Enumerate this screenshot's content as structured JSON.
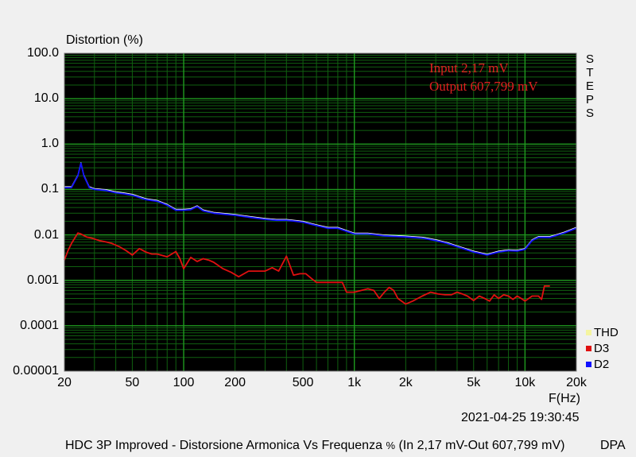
{
  "chart_data": {
    "type": "line",
    "title": "Distortion (%)",
    "xlabel": "F(Hz)",
    "xscale": "log",
    "yscale": "log",
    "xlim": [
      20,
      20000
    ],
    "ylim": [
      1e-05,
      100
    ],
    "grid": true,
    "x_ticks": [
      20,
      50,
      100,
      200,
      500,
      1000,
      2000,
      5000,
      10000,
      20000
    ],
    "x_tick_labels": [
      "20",
      "50",
      "100",
      "200",
      "500",
      "1k",
      "2k",
      "5k",
      "10k",
      "20k"
    ],
    "y_ticks": [
      100,
      10,
      1,
      0.1,
      0.01,
      0.001,
      0.0001,
      1e-05
    ],
    "y_tick_labels": [
      "100.0",
      "10.0",
      "1.0",
      "0.1",
      "0.01",
      "0.001",
      "0.0001",
      "0.00001"
    ],
    "legend": [
      "THD",
      "D3",
      "D2"
    ],
    "legend_placement": "bottom-right",
    "side_label": "STEPS",
    "annotations": [
      "Input 2,17 mV",
      "Output 607,799 mV"
    ],
    "series": [
      {
        "name": "D2",
        "color": "#1010ff",
        "x": [
          20,
          22,
          24,
          25,
          26,
          28,
          30,
          35,
          40,
          45,
          50,
          60,
          70,
          80,
          90,
          100,
          110,
          120,
          130,
          150,
          200,
          250,
          300,
          350,
          400,
          450,
          500,
          600,
          700,
          800,
          900,
          1000,
          1200,
          1500,
          2000,
          2500,
          3000,
          3500,
          4000,
          5000,
          6000,
          7000,
          8000,
          9000,
          10000,
          11000,
          12000,
          13000,
          14000,
          15000,
          17000,
          20000
        ],
        "y": [
          0.11,
          0.11,
          0.2,
          0.38,
          0.2,
          0.11,
          0.1,
          0.095,
          0.085,
          0.08,
          0.075,
          0.06,
          0.055,
          0.045,
          0.035,
          0.035,
          0.036,
          0.042,
          0.034,
          0.03,
          0.027,
          0.024,
          0.022,
          0.021,
          0.021,
          0.02,
          0.019,
          0.016,
          0.014,
          0.014,
          0.012,
          0.0105,
          0.0105,
          0.0095,
          0.009,
          0.0085,
          0.0075,
          0.0065,
          0.0055,
          0.0042,
          0.0036,
          0.0042,
          0.0045,
          0.0044,
          0.0048,
          0.0075,
          0.0088,
          0.0088,
          0.0088,
          0.0095,
          0.011,
          0.014
        ]
      },
      {
        "name": "D3",
        "color": "#e01010",
        "x": [
          20,
          21,
          22,
          23,
          24,
          25,
          27,
          29,
          32,
          35,
          38,
          42,
          46,
          50,
          55,
          60,
          65,
          70,
          80,
          90,
          95,
          100,
          110,
          120,
          130,
          140,
          150,
          170,
          190,
          210,
          240,
          270,
          300,
          330,
          360,
          400,
          440,
          480,
          520,
          560,
          600,
          650,
          700,
          750,
          800,
          850,
          900,
          1000,
          1100,
          1200,
          1300,
          1400,
          1500,
          1600,
          1700,
          1800,
          2000,
          2200,
          2500,
          2800,
          3100,
          3400,
          3700,
          4000,
          4300,
          4600,
          5000,
          5400,
          5800,
          6200,
          6600,
          7000,
          7500,
          8000,
          8500,
          9000,
          9500,
          10000,
          11000,
          12000,
          12500,
          13000,
          14000
        ],
        "y": [
          0.0028,
          0.0045,
          0.0065,
          0.0085,
          0.011,
          0.0105,
          0.009,
          0.0085,
          0.0075,
          0.007,
          0.0065,
          0.0055,
          0.0045,
          0.0036,
          0.005,
          0.0042,
          0.0038,
          0.0038,
          0.0033,
          0.0043,
          0.003,
          0.0018,
          0.0032,
          0.0026,
          0.003,
          0.0028,
          0.0025,
          0.0018,
          0.0015,
          0.0012,
          0.0016,
          0.0016,
          0.0016,
          0.0019,
          0.0016,
          0.0034,
          0.0013,
          0.0014,
          0.0014,
          0.0011,
          0.0009,
          0.0009,
          0.0009,
          0.0009,
          0.0009,
          0.0009,
          0.00055,
          0.00055,
          0.0006,
          0.00065,
          0.0006,
          0.0004,
          0.00055,
          0.0007,
          0.0006,
          0.0004,
          0.0003,
          0.00035,
          0.00045,
          0.00055,
          0.0005,
          0.00048,
          0.00048,
          0.00055,
          0.0005,
          0.00045,
          0.00036,
          0.00045,
          0.0004,
          0.00035,
          0.00048,
          0.0004,
          0.00048,
          0.00045,
          0.00038,
          0.00045,
          0.0004,
          0.00035,
          0.00045,
          0.00045,
          0.00038,
          0.00075,
          0.00075
        ]
      }
    ]
  },
  "header": {
    "title": "Distortion (%)",
    "steps_letters": [
      "S",
      "T",
      "E",
      "P",
      "S"
    ]
  },
  "footer": {
    "timestamp": "2021-04-25 19:30:45",
    "caption_main": "HDC 3P Improved - Distorsione Armonica Vs Frequenza",
    "caption_unit": "%",
    "caption_tail": "(In 2,17 mV-Out 607,799 mV)",
    "brand": "DPA"
  },
  "legend": {
    "items": [
      {
        "label": "THD",
        "color": "#f5f5a0"
      },
      {
        "label": "D3",
        "color": "#e01010"
      },
      {
        "label": "D2",
        "color": "#1010ff"
      }
    ]
  }
}
